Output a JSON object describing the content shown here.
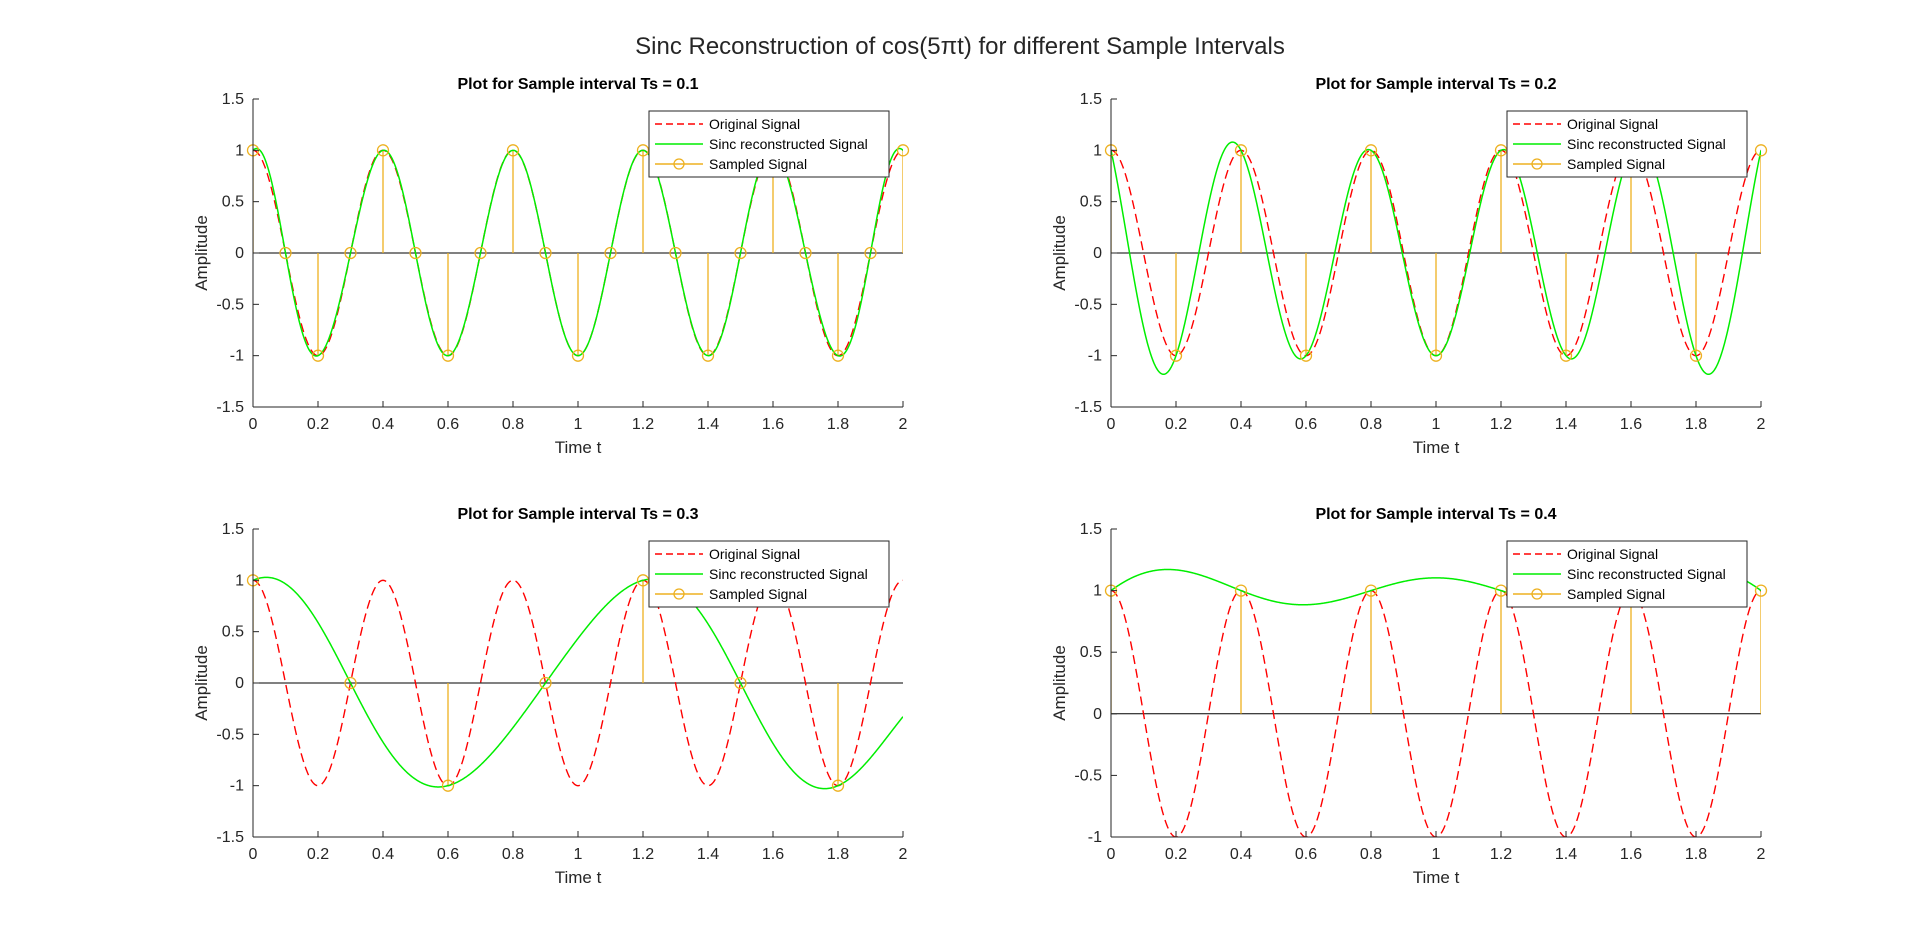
{
  "figure": {
    "suptitle": "Sinc Reconstruction of cos(5πt) for different Sample Intervals"
  },
  "colors": {
    "original": "#ff0000",
    "reconstructed": "#00ee00",
    "sampled": "#edb120",
    "axis": "#262626",
    "zeroline": "#000000"
  },
  "chart_data": [
    {
      "type": "line",
      "title": "Plot for Sample interval Ts = 0.1",
      "xlabel": "Time t",
      "ylabel": "Amplitude",
      "xlim": [
        0,
        2
      ],
      "ylim": [
        -1.5,
        1.5
      ],
      "xticks": [
        "0",
        "0.2",
        "0.4",
        "0.6",
        "0.8",
        "1",
        "1.2",
        "1.4",
        "1.6",
        "1.8",
        "2"
      ],
      "yticks": [
        "-1.5",
        "-1",
        "-0.5",
        "0",
        "0.5",
        "1",
        "1.5"
      ],
      "legend_position": "top-right",
      "series": [
        {
          "name": "Original Signal",
          "kind": "dashed-line",
          "function": "cos(5πt)"
        },
        {
          "name": "Sinc reconstructed Signal",
          "kind": "line",
          "Ts": 0.1
        },
        {
          "name": "Sampled Signal",
          "kind": "stem",
          "Ts": 0.1,
          "x": [
            0,
            0.1,
            0.2,
            0.3,
            0.4,
            0.5,
            0.6,
            0.7,
            0.8,
            0.9,
            1.0,
            1.1,
            1.2,
            1.3,
            1.4,
            1.5,
            1.6,
            1.7,
            1.8,
            1.9,
            2.0
          ],
          "y": [
            1,
            0,
            -1,
            0,
            1,
            0,
            -1,
            0,
            1,
            0,
            -1,
            0,
            1,
            0,
            -1,
            0,
            1,
            0,
            -1,
            0,
            1
          ]
        }
      ]
    },
    {
      "type": "line",
      "title": "Plot for Sample interval Ts = 0.2",
      "xlabel": "Time t",
      "ylabel": "Amplitude",
      "xlim": [
        0,
        2
      ],
      "ylim": [
        -1.5,
        1.5
      ],
      "xticks": [
        "0",
        "0.2",
        "0.4",
        "0.6",
        "0.8",
        "1",
        "1.2",
        "1.4",
        "1.6",
        "1.8",
        "2"
      ],
      "yticks": [
        "-1.5",
        "-1",
        "-0.5",
        "0",
        "0.5",
        "1",
        "1.5"
      ],
      "legend_position": "top-right",
      "series": [
        {
          "name": "Original Signal",
          "kind": "dashed-line",
          "function": "cos(5πt)"
        },
        {
          "name": "Sinc reconstructed Signal",
          "kind": "line",
          "Ts": 0.2
        },
        {
          "name": "Sampled Signal",
          "kind": "stem",
          "Ts": 0.2,
          "x": [
            0,
            0.2,
            0.4,
            0.6,
            0.8,
            1.0,
            1.2,
            1.4,
            1.6,
            1.8,
            2.0
          ],
          "y": [
            1,
            -1,
            1,
            -1,
            1,
            -1,
            1,
            -1,
            1,
            -1,
            1
          ]
        }
      ]
    },
    {
      "type": "line",
      "title": "Plot for Sample interval Ts = 0.3",
      "xlabel": "Time t",
      "ylabel": "Amplitude",
      "xlim": [
        0,
        2
      ],
      "ylim": [
        -1.5,
        1.5
      ],
      "xticks": [
        "0",
        "0.2",
        "0.4",
        "0.6",
        "0.8",
        "1",
        "1.2",
        "1.4",
        "1.6",
        "1.8",
        "2"
      ],
      "yticks": [
        "-1.5",
        "-1",
        "-0.5",
        "0",
        "0.5",
        "1",
        "1.5"
      ],
      "legend_position": "top-right",
      "series": [
        {
          "name": "Original Signal",
          "kind": "dashed-line",
          "function": "cos(5πt)"
        },
        {
          "name": "Sinc reconstructed Signal",
          "kind": "line",
          "Ts": 0.3
        },
        {
          "name": "Sampled Signal",
          "kind": "stem",
          "Ts": 0.3,
          "x": [
            0,
            0.3,
            0.6,
            0.9,
            1.2,
            1.5,
            1.8
          ],
          "y": [
            1,
            0,
            -1,
            0,
            1,
            0,
            -1
          ]
        }
      ]
    },
    {
      "type": "line",
      "title": "Plot for Sample interval Ts = 0.4",
      "xlabel": "Time t",
      "ylabel": "Amplitude",
      "xlim": [
        0,
        2
      ],
      "ylim": [
        -1,
        1.5
      ],
      "xticks": [
        "0",
        "0.2",
        "0.4",
        "0.6",
        "0.8",
        "1",
        "1.2",
        "1.4",
        "1.6",
        "1.8",
        "2"
      ],
      "yticks": [
        "-1",
        "-0.5",
        "0",
        "0.5",
        "1",
        "1.5"
      ],
      "legend_position": "top-right",
      "series": [
        {
          "name": "Original Signal",
          "kind": "dashed-line",
          "function": "cos(5πt)"
        },
        {
          "name": "Sinc reconstructed Signal",
          "kind": "line",
          "Ts": 0.4
        },
        {
          "name": "Sampled Signal",
          "kind": "stem",
          "Ts": 0.4,
          "x": [
            0,
            0.4,
            0.8,
            1.2,
            1.6,
            2.0
          ],
          "y": [
            1,
            1,
            1,
            1,
            1,
            1
          ]
        }
      ]
    }
  ]
}
